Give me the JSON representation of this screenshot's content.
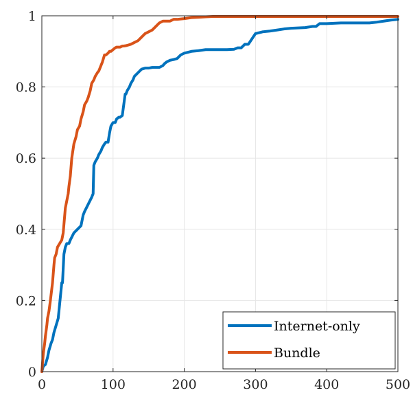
{
  "chart_data": {
    "type": "line",
    "title": "",
    "xlabel": "",
    "ylabel": "",
    "xlim": [
      0,
      500
    ],
    "ylim": [
      0,
      1
    ],
    "xticks": [
      0,
      100,
      200,
      300,
      400,
      500
    ],
    "yticks": [
      0,
      0.2,
      0.4,
      0.6,
      0.8,
      1
    ],
    "xtick_labels": [
      "0",
      "100",
      "200",
      "300",
      "400",
      "500"
    ],
    "ytick_labels": [
      "0",
      "0.2",
      "0.4",
      "0.6",
      "0.8",
      "1"
    ],
    "grid": true,
    "legend_position": "bottom-right",
    "series": [
      {
        "name": "Internet-only",
        "color": "#0072BD",
        "x": [
          0,
          2,
          5,
          8,
          10,
          13,
          15,
          17,
          20,
          23,
          25,
          27,
          28,
          29,
          30,
          31,
          33,
          35,
          38,
          40,
          45,
          50,
          55,
          58,
          60,
          65,
          70,
          72,
          73,
          75,
          78,
          80,
          83,
          85,
          88,
          90,
          93,
          95,
          97,
          100,
          103,
          105,
          108,
          110,
          113,
          115,
          117,
          118,
          120,
          123,
          125,
          128,
          130,
          135,
          140,
          145,
          150,
          155,
          160,
          165,
          170,
          172,
          175,
          180,
          185,
          190,
          195,
          200,
          210,
          220,
          230,
          240,
          250,
          260,
          270,
          275,
          280,
          285,
          290,
          300,
          310,
          320,
          330,
          340,
          350,
          360,
          370,
          380,
          385,
          390,
          400,
          420,
          440,
          460,
          470,
          480,
          490,
          500
        ],
        "y": [
          0,
          0.015,
          0.02,
          0.04,
          0.06,
          0.08,
          0.09,
          0.11,
          0.13,
          0.15,
          0.19,
          0.23,
          0.25,
          0.25,
          0.29,
          0.33,
          0.35,
          0.36,
          0.36,
          0.37,
          0.39,
          0.4,
          0.41,
          0.44,
          0.45,
          0.47,
          0.49,
          0.5,
          0.58,
          0.59,
          0.6,
          0.61,
          0.62,
          0.63,
          0.64,
          0.645,
          0.645,
          0.67,
          0.69,
          0.7,
          0.7,
          0.71,
          0.715,
          0.715,
          0.72,
          0.75,
          0.78,
          0.78,
          0.79,
          0.8,
          0.81,
          0.82,
          0.83,
          0.84,
          0.85,
          0.853,
          0.853,
          0.855,
          0.855,
          0.855,
          0.86,
          0.865,
          0.87,
          0.875,
          0.877,
          0.88,
          0.89,
          0.895,
          0.9,
          0.902,
          0.905,
          0.905,
          0.905,
          0.905,
          0.906,
          0.91,
          0.91,
          0.92,
          0.92,
          0.95,
          0.955,
          0.957,
          0.96,
          0.963,
          0.965,
          0.966,
          0.967,
          0.97,
          0.97,
          0.978,
          0.978,
          0.98,
          0.98,
          0.98,
          0.982,
          0.985,
          0.988,
          0.99
        ]
      },
      {
        "name": "Bundle",
        "color": "#D95319",
        "x": [
          0,
          2,
          4,
          5,
          7,
          8,
          10,
          12,
          15,
          17,
          18,
          20,
          22,
          25,
          28,
          30,
          33,
          35,
          37,
          38,
          40,
          42,
          45,
          48,
          50,
          53,
          55,
          58,
          60,
          63,
          65,
          68,
          70,
          73,
          75,
          78,
          80,
          83,
          85,
          88,
          90,
          93,
          95,
          97,
          100,
          103,
          105,
          108,
          110,
          113,
          115,
          118,
          120,
          125,
          130,
          135,
          140,
          145,
          150,
          155,
          160,
          165,
          170,
          175,
          180,
          185,
          190,
          200,
          210,
          220,
          230,
          240,
          250,
          300,
          400,
          500
        ],
        "y": [
          0,
          0.05,
          0.08,
          0.1,
          0.13,
          0.15,
          0.17,
          0.2,
          0.25,
          0.3,
          0.32,
          0.33,
          0.35,
          0.36,
          0.37,
          0.39,
          0.46,
          0.48,
          0.5,
          0.52,
          0.55,
          0.6,
          0.64,
          0.66,
          0.68,
          0.69,
          0.71,
          0.73,
          0.75,
          0.76,
          0.77,
          0.79,
          0.81,
          0.82,
          0.83,
          0.84,
          0.845,
          0.86,
          0.87,
          0.89,
          0.89,
          0.895,
          0.9,
          0.9,
          0.905,
          0.91,
          0.912,
          0.912,
          0.912,
          0.915,
          0.915,
          0.916,
          0.917,
          0.92,
          0.925,
          0.93,
          0.94,
          0.95,
          0.955,
          0.96,
          0.97,
          0.98,
          0.985,
          0.985,
          0.985,
          0.99,
          0.99,
          0.992,
          0.995,
          0.996,
          0.997,
          0.998,
          0.998,
          0.998,
          0.998,
          0.998
        ]
      }
    ]
  }
}
